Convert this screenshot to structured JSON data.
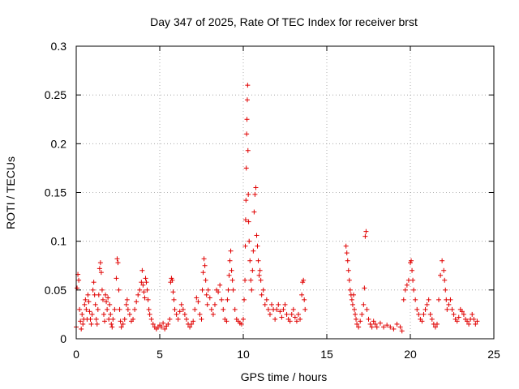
{
  "chart_data": {
    "type": "scatter",
    "title": "Day 347 of 2025, Rate Of TEC Index for receiver brst",
    "xlabel": "GPS time / hours",
    "ylabel": "ROTI / TECUs",
    "xlim": [
      0,
      25
    ],
    "ylim": [
      0,
      0.3
    ],
    "x_ticks": [
      0,
      5,
      10,
      15,
      20,
      25
    ],
    "y_ticks": [
      0,
      0.05,
      0.1,
      0.15,
      0.2,
      0.25,
      0.3
    ],
    "x_tick_labels": [
      "0",
      "5",
      "10",
      "15",
      "20",
      "25"
    ],
    "y_tick_labels": [
      "0",
      "0.05",
      "0.1",
      "0.15",
      "0.2",
      "0.25",
      "0.3"
    ],
    "grid": true,
    "marker": "+",
    "color": "#e00000",
    "series": [
      {
        "name": "ROTI",
        "points": [
          [
            0.0,
            0.012
          ],
          [
            0.05,
            0.052
          ],
          [
            0.1,
            0.066
          ],
          [
            0.15,
            0.06
          ],
          [
            0.2,
            0.03
          ],
          [
            0.25,
            0.018
          ],
          [
            0.3,
            0.01
          ],
          [
            0.35,
            0.025
          ],
          [
            0.4,
            0.015
          ],
          [
            0.45,
            0.02
          ],
          [
            0.5,
            0.035
          ],
          [
            0.55,
            0.04
          ],
          [
            0.6,
            0.03
          ],
          [
            0.65,
            0.02
          ],
          [
            0.7,
            0.045
          ],
          [
            0.75,
            0.038
          ],
          [
            0.8,
            0.028
          ],
          [
            0.85,
            0.02
          ],
          [
            0.9,
            0.015
          ],
          [
            0.95,
            0.025
          ],
          [
            1.0,
            0.05
          ],
          [
            1.05,
            0.058
          ],
          [
            1.1,
            0.045
          ],
          [
            1.15,
            0.035
          ],
          [
            1.2,
            0.02
          ],
          [
            1.25,
            0.015
          ],
          [
            1.3,
            0.03
          ],
          [
            1.35,
            0.045
          ],
          [
            1.4,
            0.072
          ],
          [
            1.45,
            0.078
          ],
          [
            1.5,
            0.068
          ],
          [
            1.55,
            0.05
          ],
          [
            1.6,
            0.04
          ],
          [
            1.65,
            0.025
          ],
          [
            1.7,
            0.018
          ],
          [
            1.75,
            0.045
          ],
          [
            1.8,
            0.038
          ],
          [
            1.85,
            0.03
          ],
          [
            1.9,
            0.042
          ],
          [
            1.95,
            0.02
          ],
          [
            2.0,
            0.035
          ],
          [
            2.05,
            0.025
          ],
          [
            2.1,
            0.015
          ],
          [
            2.15,
            0.012
          ],
          [
            2.2,
            0.02
          ],
          [
            2.3,
            0.03
          ],
          [
            2.4,
            0.062
          ],
          [
            2.45,
            0.082
          ],
          [
            2.5,
            0.078
          ],
          [
            2.55,
            0.05
          ],
          [
            2.6,
            0.03
          ],
          [
            2.65,
            0.018
          ],
          [
            2.7,
            0.012
          ],
          [
            2.8,
            0.015
          ],
          [
            2.9,
            0.02
          ],
          [
            3.0,
            0.035
          ],
          [
            3.05,
            0.04
          ],
          [
            3.1,
            0.03
          ],
          [
            3.2,
            0.025
          ],
          [
            3.3,
            0.018
          ],
          [
            3.4,
            0.02
          ],
          [
            3.5,
            0.03
          ],
          [
            3.6,
            0.038
          ],
          [
            3.7,
            0.045
          ],
          [
            3.8,
            0.05
          ],
          [
            3.9,
            0.058
          ],
          [
            3.95,
            0.07
          ],
          [
            4.0,
            0.055
          ],
          [
            4.05,
            0.048
          ],
          [
            4.1,
            0.042
          ],
          [
            4.15,
            0.062
          ],
          [
            4.2,
            0.058
          ],
          [
            4.25,
            0.05
          ],
          [
            4.3,
            0.04
          ],
          [
            4.35,
            0.03
          ],
          [
            4.4,
            0.025
          ],
          [
            4.5,
            0.02
          ],
          [
            4.6,
            0.015
          ],
          [
            4.7,
            0.012
          ],
          [
            4.8,
            0.01
          ],
          [
            4.9,
            0.012
          ],
          [
            5.0,
            0.014
          ],
          [
            5.1,
            0.012
          ],
          [
            5.2,
            0.016
          ],
          [
            5.3,
            0.01
          ],
          [
            5.4,
            0.013
          ],
          [
            5.5,
            0.015
          ],
          [
            5.6,
            0.02
          ],
          [
            5.65,
            0.058
          ],
          [
            5.7,
            0.062
          ],
          [
            5.75,
            0.06
          ],
          [
            5.8,
            0.048
          ],
          [
            5.85,
            0.04
          ],
          [
            5.9,
            0.03
          ],
          [
            6.0,
            0.025
          ],
          [
            6.1,
            0.02
          ],
          [
            6.2,
            0.028
          ],
          [
            6.3,
            0.035
          ],
          [
            6.4,
            0.03
          ],
          [
            6.5,
            0.025
          ],
          [
            6.6,
            0.02
          ],
          [
            6.7,
            0.015
          ],
          [
            6.8,
            0.012
          ],
          [
            6.9,
            0.015
          ],
          [
            7.0,
            0.018
          ],
          [
            7.1,
            0.03
          ],
          [
            7.2,
            0.042
          ],
          [
            7.3,
            0.038
          ],
          [
            7.4,
            0.025
          ],
          [
            7.5,
            0.02
          ],
          [
            7.55,
            0.05
          ],
          [
            7.6,
            0.068
          ],
          [
            7.65,
            0.082
          ],
          [
            7.7,
            0.075
          ],
          [
            7.75,
            0.06
          ],
          [
            7.8,
            0.045
          ],
          [
            7.85,
            0.035
          ],
          [
            7.9,
            0.05
          ],
          [
            8.0,
            0.042
          ],
          [
            8.1,
            0.03
          ],
          [
            8.2,
            0.025
          ],
          [
            8.3,
            0.035
          ],
          [
            8.4,
            0.05
          ],
          [
            8.5,
            0.048
          ],
          [
            8.6,
            0.055
          ],
          [
            8.7,
            0.04
          ],
          [
            8.8,
            0.03
          ],
          [
            8.9,
            0.02
          ],
          [
            9.0,
            0.018
          ],
          [
            9.05,
            0.04
          ],
          [
            9.1,
            0.05
          ],
          [
            9.15,
            0.065
          ],
          [
            9.2,
            0.08
          ],
          [
            9.25,
            0.09
          ],
          [
            9.3,
            0.07
          ],
          [
            9.35,
            0.06
          ],
          [
            9.4,
            0.05
          ],
          [
            9.5,
            0.03
          ],
          [
            9.6,
            0.02
          ],
          [
            9.7,
            0.018
          ],
          [
            9.8,
            0.016
          ],
          [
            9.9,
            0.015
          ],
          [
            10.0,
            0.02
          ],
          [
            10.05,
            0.04
          ],
          [
            10.1,
            0.06
          ],
          [
            10.12,
            0.095
          ],
          [
            10.14,
            0.122
          ],
          [
            10.16,
            0.142
          ],
          [
            10.18,
            0.175
          ],
          [
            10.2,
            0.21
          ],
          [
            10.22,
            0.225
          ],
          [
            10.24,
            0.245
          ],
          [
            10.26,
            0.26
          ],
          [
            10.28,
            0.193
          ],
          [
            10.3,
            0.148
          ],
          [
            10.32,
            0.12
          ],
          [
            10.35,
            0.1
          ],
          [
            10.4,
            0.08
          ],
          [
            10.45,
            0.06
          ],
          [
            10.5,
            0.05
          ],
          [
            10.55,
            0.07
          ],
          [
            10.6,
            0.09
          ],
          [
            10.65,
            0.13
          ],
          [
            10.7,
            0.148
          ],
          [
            10.75,
            0.155
          ],
          [
            10.8,
            0.106
          ],
          [
            10.85,
            0.095
          ],
          [
            10.9,
            0.08
          ],
          [
            10.95,
            0.065
          ],
          [
            11.0,
            0.07
          ],
          [
            11.05,
            0.06
          ],
          [
            11.1,
            0.045
          ],
          [
            11.2,
            0.05
          ],
          [
            11.3,
            0.035
          ],
          [
            11.4,
            0.04
          ],
          [
            11.5,
            0.03
          ],
          [
            11.6,
            0.025
          ],
          [
            11.7,
            0.035
          ],
          [
            11.8,
            0.03
          ],
          [
            11.9,
            0.02
          ],
          [
            12.0,
            0.03
          ],
          [
            12.1,
            0.035
          ],
          [
            12.2,
            0.028
          ],
          [
            12.3,
            0.022
          ],
          [
            12.4,
            0.03
          ],
          [
            12.5,
            0.035
          ],
          [
            12.6,
            0.025
          ],
          [
            12.7,
            0.02
          ],
          [
            12.8,
            0.018
          ],
          [
            12.9,
            0.025
          ],
          [
            13.0,
            0.03
          ],
          [
            13.1,
            0.022
          ],
          [
            13.2,
            0.018
          ],
          [
            13.3,
            0.025
          ],
          [
            13.4,
            0.02
          ],
          [
            13.5,
            0.045
          ],
          [
            13.55,
            0.058
          ],
          [
            13.6,
            0.06
          ],
          [
            13.65,
            0.04
          ],
          [
            13.7,
            0.03
          ],
          [
            16.15,
            0.095
          ],
          [
            16.2,
            0.088
          ],
          [
            16.25,
            0.08
          ],
          [
            16.3,
            0.07
          ],
          [
            16.35,
            0.06
          ],
          [
            16.4,
            0.05
          ],
          [
            16.45,
            0.045
          ],
          [
            16.5,
            0.04
          ],
          [
            16.55,
            0.035
          ],
          [
            16.6,
            0.045
          ],
          [
            16.65,
            0.03
          ],
          [
            16.7,
            0.025
          ],
          [
            16.75,
            0.02
          ],
          [
            16.8,
            0.015
          ],
          [
            16.9,
            0.012
          ],
          [
            17.0,
            0.018
          ],
          [
            17.1,
            0.025
          ],
          [
            17.2,
            0.035
          ],
          [
            17.25,
            0.052
          ],
          [
            17.3,
            0.105
          ],
          [
            17.35,
            0.11
          ],
          [
            17.4,
            0.03
          ],
          [
            17.5,
            0.02
          ],
          [
            17.6,
            0.015
          ],
          [
            17.7,
            0.012
          ],
          [
            17.8,
            0.018
          ],
          [
            17.9,
            0.015
          ],
          [
            18.0,
            0.012
          ],
          [
            18.2,
            0.016
          ],
          [
            18.4,
            0.012
          ],
          [
            18.6,
            0.014
          ],
          [
            18.8,
            0.012
          ],
          [
            19.0,
            0.01
          ],
          [
            19.2,
            0.015
          ],
          [
            19.4,
            0.012
          ],
          [
            19.5,
            0.008
          ],
          [
            19.6,
            0.04
          ],
          [
            19.7,
            0.05
          ],
          [
            19.8,
            0.055
          ],
          [
            19.9,
            0.06
          ],
          [
            20.0,
            0.078
          ],
          [
            20.05,
            0.08
          ],
          [
            20.1,
            0.07
          ],
          [
            20.15,
            0.06
          ],
          [
            20.2,
            0.05
          ],
          [
            20.3,
            0.04
          ],
          [
            20.4,
            0.03
          ],
          [
            20.5,
            0.025
          ],
          [
            20.6,
            0.02
          ],
          [
            20.7,
            0.018
          ],
          [
            20.8,
            0.025
          ],
          [
            20.9,
            0.03
          ],
          [
            21.0,
            0.035
          ],
          [
            21.1,
            0.04
          ],
          [
            21.2,
            0.025
          ],
          [
            21.3,
            0.02
          ],
          [
            21.4,
            0.015
          ],
          [
            21.5,
            0.012
          ],
          [
            21.6,
            0.015
          ],
          [
            21.7,
            0.04
          ],
          [
            21.8,
            0.065
          ],
          [
            21.9,
            0.08
          ],
          [
            22.0,
            0.07
          ],
          [
            22.05,
            0.06
          ],
          [
            22.1,
            0.05
          ],
          [
            22.15,
            0.04
          ],
          [
            22.2,
            0.03
          ],
          [
            22.3,
            0.035
          ],
          [
            22.4,
            0.04
          ],
          [
            22.5,
            0.03
          ],
          [
            22.6,
            0.025
          ],
          [
            22.7,
            0.02
          ],
          [
            22.8,
            0.018
          ],
          [
            22.9,
            0.022
          ],
          [
            23.0,
            0.03
          ],
          [
            23.1,
            0.028
          ],
          [
            23.2,
            0.025
          ],
          [
            23.3,
            0.02
          ],
          [
            23.4,
            0.018
          ],
          [
            23.5,
            0.015
          ],
          [
            23.6,
            0.02
          ],
          [
            23.7,
            0.025
          ],
          [
            23.8,
            0.02
          ],
          [
            23.9,
            0.015
          ],
          [
            24.0,
            0.018
          ]
        ]
      }
    ]
  }
}
